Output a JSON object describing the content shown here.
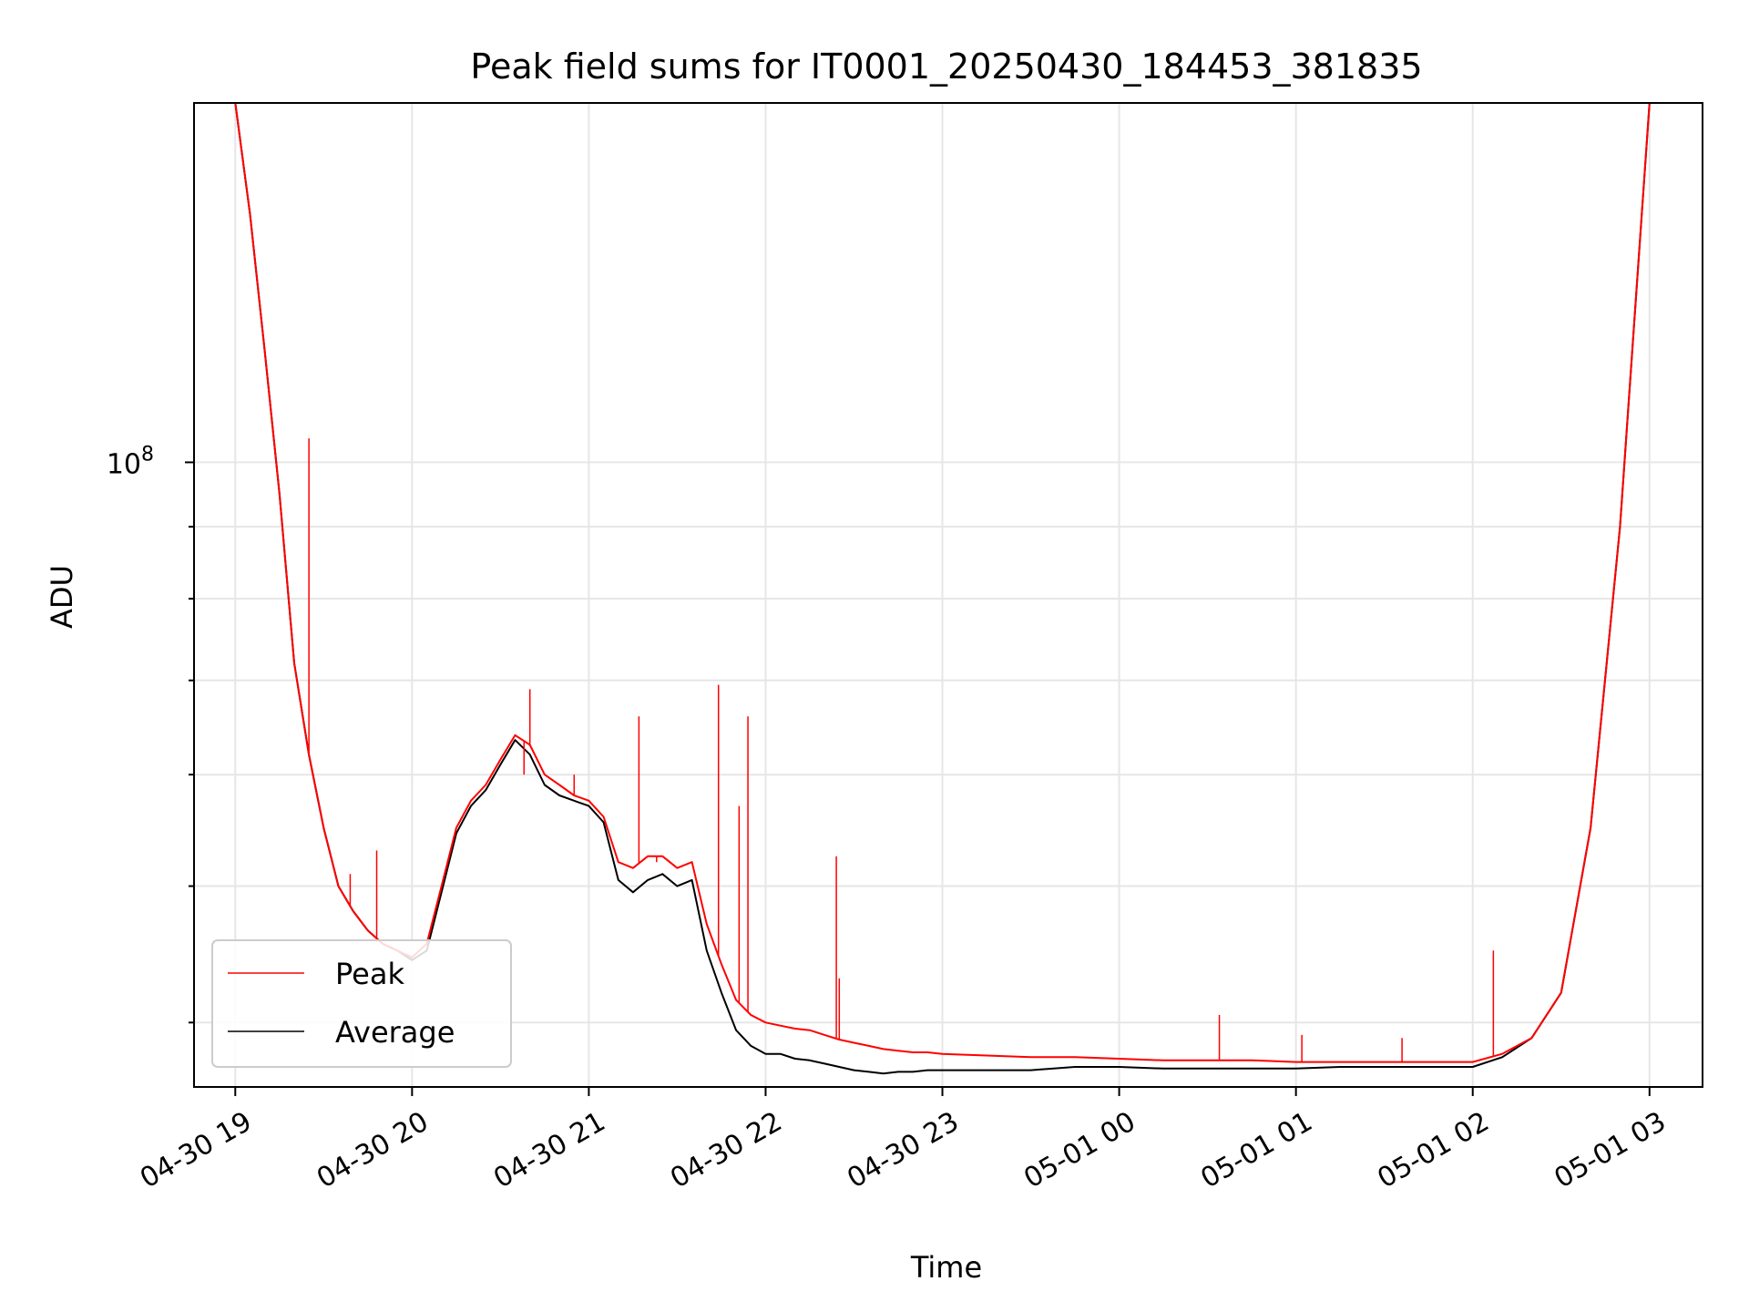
{
  "chart_data": {
    "type": "line",
    "title": "Peak field sums for IT0001_20250430_184453_381835",
    "xlabel": "Time",
    "ylabel": "ADU",
    "y_scale": "log",
    "xlim": [
      "2025-04-30 18:46",
      "2025-05-01 03:18"
    ],
    "ylim": [
      36000000,
      180000000
    ],
    "x_ticks": [
      "04-30 19",
      "04-30 20",
      "04-30 21",
      "04-30 22",
      "04-30 23",
      "05-01 00",
      "05-01 01",
      "05-01 02",
      "05-01 03"
    ],
    "y_ticks": [
      {
        "value": 100000000,
        "base": "10",
        "exponent": "8"
      }
    ],
    "grid": true,
    "legend_position": "lower-left",
    "series": [
      {
        "name": "Peak",
        "color": "#ff0000",
        "x": [
          "2025-04-30 19:00",
          "2025-04-30 19:05",
          "2025-04-30 19:10",
          "2025-04-30 19:15",
          "2025-04-30 19:20",
          "2025-04-30 19:25",
          "2025-04-30 19:30",
          "2025-04-30 19:35",
          "2025-04-30 19:40",
          "2025-04-30 19:45",
          "2025-04-30 19:50",
          "2025-04-30 19:55",
          "2025-04-30 20:00",
          "2025-04-30 20:05",
          "2025-04-30 20:10",
          "2025-04-30 20:15",
          "2025-04-30 20:20",
          "2025-04-30 20:25",
          "2025-04-30 20:30",
          "2025-04-30 20:35",
          "2025-04-30 20:40",
          "2025-04-30 20:45",
          "2025-04-30 20:50",
          "2025-04-30 20:55",
          "2025-04-30 21:00",
          "2025-04-30 21:05",
          "2025-04-30 21:10",
          "2025-04-30 21:15",
          "2025-04-30 21:20",
          "2025-04-30 21:25",
          "2025-04-30 21:30",
          "2025-04-30 21:35",
          "2025-04-30 21:40",
          "2025-04-30 21:45",
          "2025-04-30 21:50",
          "2025-04-30 21:55",
          "2025-04-30 22:00",
          "2025-04-30 22:05",
          "2025-04-30 22:10",
          "2025-04-30 22:15",
          "2025-04-30 22:20",
          "2025-04-30 22:25",
          "2025-04-30 22:30",
          "2025-04-30 22:35",
          "2025-04-30 22:40",
          "2025-04-30 22:45",
          "2025-04-30 22:50",
          "2025-04-30 22:55",
          "2025-04-30 23:00",
          "2025-04-30 23:15",
          "2025-04-30 23:30",
          "2025-04-30 23:45",
          "2025-05-01 00:00",
          "2025-05-01 00:15",
          "2025-05-01 00:30",
          "2025-05-01 00:45",
          "2025-05-01 01:00",
          "2025-05-01 01:15",
          "2025-05-01 01:30",
          "2025-05-01 01:45",
          "2025-05-01 02:00",
          "2025-05-01 02:10",
          "2025-05-01 02:20",
          "2025-05-01 02:30",
          "2025-05-01 02:40",
          "2025-05-01 02:50",
          "2025-05-01 03:00"
        ],
        "values": [
          180000000,
          150000000,
          120000000,
          95000000,
          72000000,
          62000000,
          55000000,
          50000000,
          48000000,
          46500000,
          45500000,
          45000000,
          44500000,
          45500000,
          50000000,
          55000000,
          57500000,
          59000000,
          61500000,
          64000000,
          63000000,
          60000000,
          59000000,
          58000000,
          57500000,
          56000000,
          52000000,
          51500000,
          52500000,
          52500000,
          51500000,
          52000000,
          47000000,
          44000000,
          41500000,
          40500000,
          40000000,
          39800000,
          39600000,
          39500000,
          39200000,
          38900000,
          38700000,
          38500000,
          38300000,
          38200000,
          38100000,
          38100000,
          38000000,
          37900000,
          37800000,
          37800000,
          37700000,
          37600000,
          37600000,
          37600000,
          37500000,
          37500000,
          37500000,
          37500000,
          37500000,
          38000000,
          39000000,
          42000000,
          55000000,
          90000000,
          180000000
        ]
      },
      {
        "name": "Average",
        "color": "#000000",
        "x": [
          "2025-04-30 19:00",
          "2025-04-30 19:05",
          "2025-04-30 19:10",
          "2025-04-30 19:15",
          "2025-04-30 19:20",
          "2025-04-30 19:25",
          "2025-04-30 19:30",
          "2025-04-30 19:35",
          "2025-04-30 19:40",
          "2025-04-30 19:45",
          "2025-04-30 19:50",
          "2025-04-30 19:55",
          "2025-04-30 20:00",
          "2025-04-30 20:05",
          "2025-04-30 20:10",
          "2025-04-30 20:15",
          "2025-04-30 20:20",
          "2025-04-30 20:25",
          "2025-04-30 20:30",
          "2025-04-30 20:35",
          "2025-04-30 20:40",
          "2025-04-30 20:45",
          "2025-04-30 20:50",
          "2025-04-30 20:55",
          "2025-04-30 21:00",
          "2025-04-30 21:05",
          "2025-04-30 21:10",
          "2025-04-30 21:15",
          "2025-04-30 21:20",
          "2025-04-30 21:25",
          "2025-04-30 21:30",
          "2025-04-30 21:35",
          "2025-04-30 21:40",
          "2025-04-30 21:45",
          "2025-04-30 21:50",
          "2025-04-30 21:55",
          "2025-04-30 22:00",
          "2025-04-30 22:05",
          "2025-04-30 22:10",
          "2025-04-30 22:15",
          "2025-04-30 22:20",
          "2025-04-30 22:25",
          "2025-04-30 22:30",
          "2025-04-30 22:35",
          "2025-04-30 22:40",
          "2025-04-30 22:45",
          "2025-04-30 22:50",
          "2025-04-30 22:55",
          "2025-04-30 23:00",
          "2025-04-30 23:15",
          "2025-04-30 23:30",
          "2025-04-30 23:45",
          "2025-05-01 00:00",
          "2025-05-01 00:15",
          "2025-05-01 00:30",
          "2025-05-01 00:45",
          "2025-05-01 01:00",
          "2025-05-01 01:15",
          "2025-05-01 01:30",
          "2025-05-01 01:45",
          "2025-05-01 02:00",
          "2025-05-01 02:10",
          "2025-05-01 02:20",
          "2025-05-01 02:30",
          "2025-05-01 02:40",
          "2025-05-01 02:50",
          "2025-05-01 03:00"
        ],
        "values": [
          180000000,
          150000000,
          120000000,
          95000000,
          72000000,
          62000000,
          55000000,
          50000000,
          48000000,
          46500000,
          45500000,
          45000000,
          44300000,
          45000000,
          49500000,
          54500000,
          57000000,
          58500000,
          61000000,
          63500000,
          62000000,
          59000000,
          58000000,
          57500000,
          57000000,
          55500000,
          50500000,
          49500000,
          50500000,
          51000000,
          50000000,
          50500000,
          45000000,
          42000000,
          39500000,
          38500000,
          38000000,
          38000000,
          37700000,
          37600000,
          37400000,
          37200000,
          37000000,
          36900000,
          36800000,
          36900000,
          36900000,
          37000000,
          37000000,
          37000000,
          37000000,
          37200000,
          37200000,
          37100000,
          37100000,
          37100000,
          37100000,
          37200000,
          37200000,
          37200000,
          37200000,
          37800000,
          39000000,
          42000000,
          55000000,
          90000000,
          180000000
        ]
      }
    ],
    "spikes": [
      {
        "x": "2025-04-30 19:25",
        "value": 104000000
      },
      {
        "x": "2025-04-30 19:39",
        "value": 51000000
      },
      {
        "x": "2025-04-30 19:48",
        "value": 53000000
      },
      {
        "x": "2025-04-30 20:40",
        "value": 69000000
      },
      {
        "x": "2025-04-30 20:38",
        "value": 60000000
      },
      {
        "x": "2025-04-30 20:55",
        "value": 60000000
      },
      {
        "x": "2025-04-30 21:17",
        "value": 66000000
      },
      {
        "x": "2025-04-30 21:23",
        "value": 52000000
      },
      {
        "x": "2025-04-30 21:36",
        "value": 51000000
      },
      {
        "x": "2025-04-30 21:44",
        "value": 69500000
      },
      {
        "x": "2025-04-30 21:51",
        "value": 57000000
      },
      {
        "x": "2025-04-30 21:54",
        "value": 66000000
      },
      {
        "x": "2025-04-30 22:24",
        "value": 52500000
      },
      {
        "x": "2025-04-30 22:25",
        "value": 43000000
      },
      {
        "x": "2025-05-01 00:34",
        "value": 40500000
      },
      {
        "x": "2025-05-01 02:07",
        "value": 45000000
      },
      {
        "x": "2025-05-01 01:02",
        "value": 39200000
      },
      {
        "x": "2025-05-01 01:36",
        "value": 39000000
      }
    ]
  }
}
